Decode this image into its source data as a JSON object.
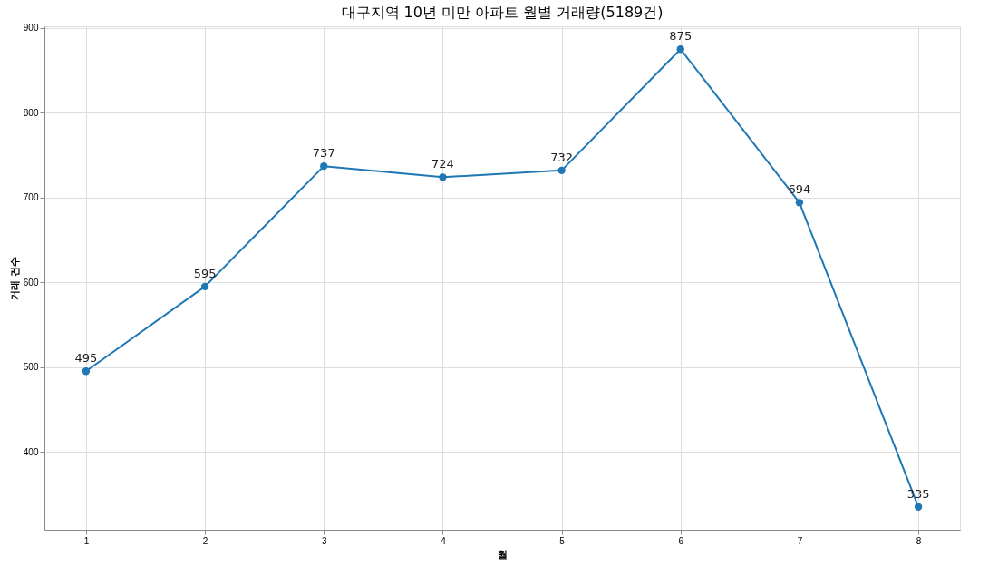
{
  "chart_data": {
    "type": "line",
    "title": "대구지역 10년 미만 아파트 월별 거래량(5189건)",
    "xlabel": "월",
    "ylabel": "거래 건수",
    "x": [
      1,
      2,
      3,
      4,
      5,
      6,
      7,
      8
    ],
    "series": [
      {
        "color": "#1f77b4",
        "values": [
          495,
          595,
          737,
          724,
          732,
          875,
          694,
          335
        ]
      }
    ],
    "xlim": [
      0.65,
      8.35
    ],
    "xticks": [
      1,
      2,
      3,
      4,
      5,
      6,
      7,
      8
    ],
    "ylim": [
      308,
      902
    ],
    "yticks": [
      400,
      500,
      600,
      700,
      800,
      900
    ],
    "grid": true,
    "marker": "circle",
    "line_style": "solid",
    "data_labels": true
  }
}
